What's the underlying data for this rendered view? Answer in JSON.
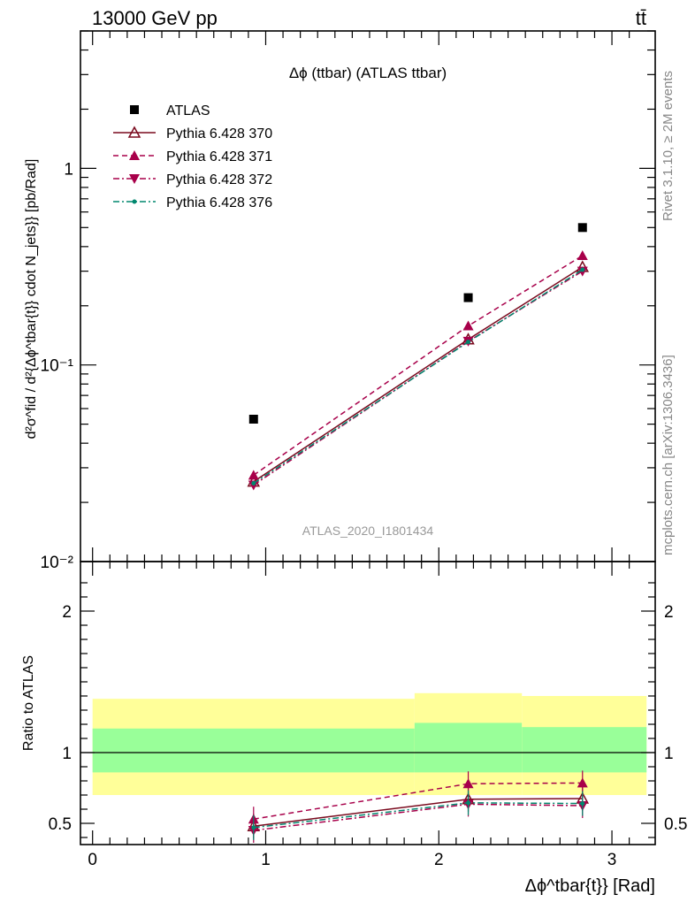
{
  "header": {
    "energy_label": "13000 GeV pp",
    "process_label": "tt̄",
    "right_top": "Rivet 3.1.10, ≥ 2M events",
    "right_bottom": "mcplots.cern.ch [arXiv:1306.3436]",
    "watermark": "ATLAS_2020_I1801434"
  },
  "chart_data": [
    {
      "type": "line",
      "title": "Δϕ (ttbar) (ATLAS ttbar)",
      "ylabel": "d²σ^fid / d²{Δϕ^tbar{t}} cdot N_jets}} [pb/Rad]",
      "yscale": "log",
      "ylim": [
        0.01,
        5
      ],
      "xlim": [
        -0.07,
        3.25
      ],
      "y_tick_labels": [
        "10⁻²",
        "10⁻¹",
        "1"
      ],
      "x": [
        0.93,
        2.17,
        2.83
      ],
      "series": [
        {
          "name": "ATLAS",
          "values": [
            0.053,
            0.22,
            0.5
          ],
          "color": "#000000",
          "marker": "square"
        },
        {
          "name": "Pythia 6.428 370",
          "values": [
            0.0255,
            0.135,
            0.315
          ],
          "color": "#7a0a1e",
          "marker": "triangle-open",
          "dash": "none"
        },
        {
          "name": "Pythia 6.428 371",
          "values": [
            0.0275,
            0.158,
            0.36
          ],
          "color": "#a8004a",
          "marker": "triangle-up",
          "dash": "dashed"
        },
        {
          "name": "Pythia 6.428 372",
          "values": [
            0.0245,
            0.132,
            0.3
          ],
          "color": "#a8004a",
          "marker": "triangle-down",
          "dash": "dashdot"
        },
        {
          "name": "Pythia 6.428 376",
          "values": [
            0.025,
            0.131,
            0.305
          ],
          "color": "#00876e",
          "marker": "dot",
          "dash": "dashdot"
        }
      ]
    },
    {
      "type": "line",
      "ylabel": "Ratio to ATLAS",
      "xlabel": "Δϕ^tbar{t}} [Rad]",
      "ylim": [
        0.35,
        2.35
      ],
      "xlim": [
        -0.07,
        3.25
      ],
      "x_tick_labels": [
        "0",
        "1",
        "2",
        "3"
      ],
      "y_tick_labels": [
        "0.5",
        "1",
        "2"
      ],
      "bands": [
        {
          "x0": 0.0,
          "x1": 1.86,
          "yellow": [
            0.7,
            1.38
          ],
          "green": [
            0.86,
            1.17
          ]
        },
        {
          "x0": 1.86,
          "x1": 2.48,
          "yellow": [
            0.7,
            1.42
          ],
          "green": [
            0.86,
            1.21
          ]
        },
        {
          "x0": 2.48,
          "x1": 3.2,
          "yellow": [
            0.7,
            1.4
          ],
          "green": [
            0.86,
            1.18
          ]
        }
      ],
      "x": [
        0.93,
        2.17,
        2.83
      ],
      "series": [
        {
          "name": "Pythia 6.428 370",
          "values": [
            0.48,
            0.67,
            0.675
          ]
        },
        {
          "name": "Pythia 6.428 371",
          "values": [
            0.53,
            0.78,
            0.785
          ]
        },
        {
          "name": "Pythia 6.428 372",
          "values": [
            0.45,
            0.635,
            0.625
          ]
        },
        {
          "name": "Pythia 6.428 376",
          "values": [
            0.47,
            0.645,
            0.64
          ]
        }
      ]
    }
  ]
}
